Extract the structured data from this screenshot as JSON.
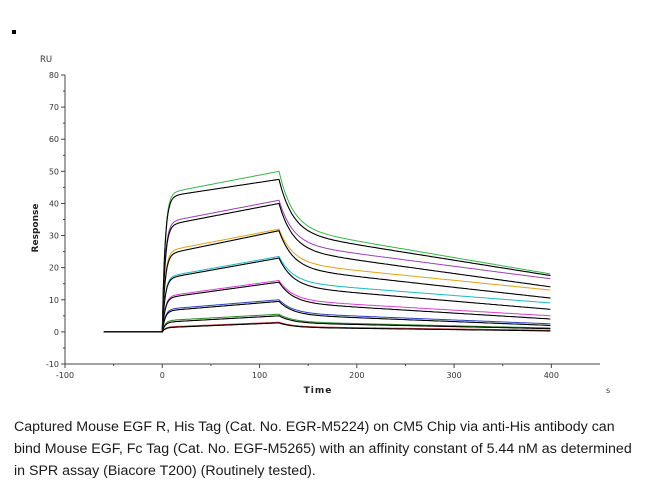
{
  "caption": "Captured Mouse EGF R, His Tag (Cat. No. EGR-M5224) on CM5 Chip via anti-His antibody can bind Mouse EGF, Fc Tag (Cat. No. EGF-M5265) with an affinity constant of 5.44 nM as determined in SPR assay (Biacore T200) (Routinely tested).",
  "chart_data": {
    "type": "line",
    "title": "",
    "xlabel": "Time",
    "ylabel": "Response",
    "y_unit": "RU",
    "x_unit": "s",
    "xlim": [
      -100,
      450
    ],
    "ylim": [
      -10,
      80
    ],
    "x_ticks": [
      -100,
      0,
      100,
      200,
      300,
      400
    ],
    "y_ticks": [
      -10,
      0,
      10,
      20,
      30,
      40,
      50,
      60,
      70,
      80
    ],
    "grid": false,
    "legend": "none",
    "baseline_x": [
      -60,
      0
    ],
    "injection_start": 0,
    "injection_end": 120,
    "end_time": 400,
    "series": [
      {
        "color": "#3cb44b",
        "start": 43.0,
        "peak": 50.0,
        "end": 18.0
      },
      {
        "color": "#000000",
        "start": 42.0,
        "peak": 47.5,
        "end": 17.5
      },
      {
        "color": "#9b3fb5",
        "start": 34.0,
        "peak": 41.0,
        "end": 16.5
      },
      {
        "color": "#000000",
        "start": 33.0,
        "peak": 40.0,
        "end": 14.0
      },
      {
        "color": "#e0a21a",
        "start": 25.0,
        "peak": 32.0,
        "end": 13.0
      },
      {
        "color": "#000000",
        "start": 24.0,
        "peak": 31.5,
        "end": 10.5
      },
      {
        "color": "#1fb5c4",
        "start": 17.0,
        "peak": 23.5,
        "end": 9.0
      },
      {
        "color": "#000000",
        "start": 16.5,
        "peak": 23.0,
        "end": 7.0
      },
      {
        "color": "#d83fd0",
        "start": 11.0,
        "peak": 16.0,
        "end": 5.0
      },
      {
        "color": "#000000",
        "start": 10.5,
        "peak": 15.5,
        "end": 4.0
      },
      {
        "color": "#2a3fbf",
        "start": 7.0,
        "peak": 10.0,
        "end": 2.5
      },
      {
        "color": "#000000",
        "start": 6.5,
        "peak": 9.5,
        "end": 2.0
      },
      {
        "color": "#2a8a2a",
        "start": 3.5,
        "peak": 5.5,
        "end": 1.2
      },
      {
        "color": "#000000",
        "start": 3.0,
        "peak": 5.0,
        "end": 1.0
      },
      {
        "color": "#c0392b",
        "start": 1.5,
        "peak": 3.0,
        "end": 0.5
      },
      {
        "color": "#000000",
        "start": 1.3,
        "peak": 2.8,
        "end": 0.3
      }
    ]
  }
}
